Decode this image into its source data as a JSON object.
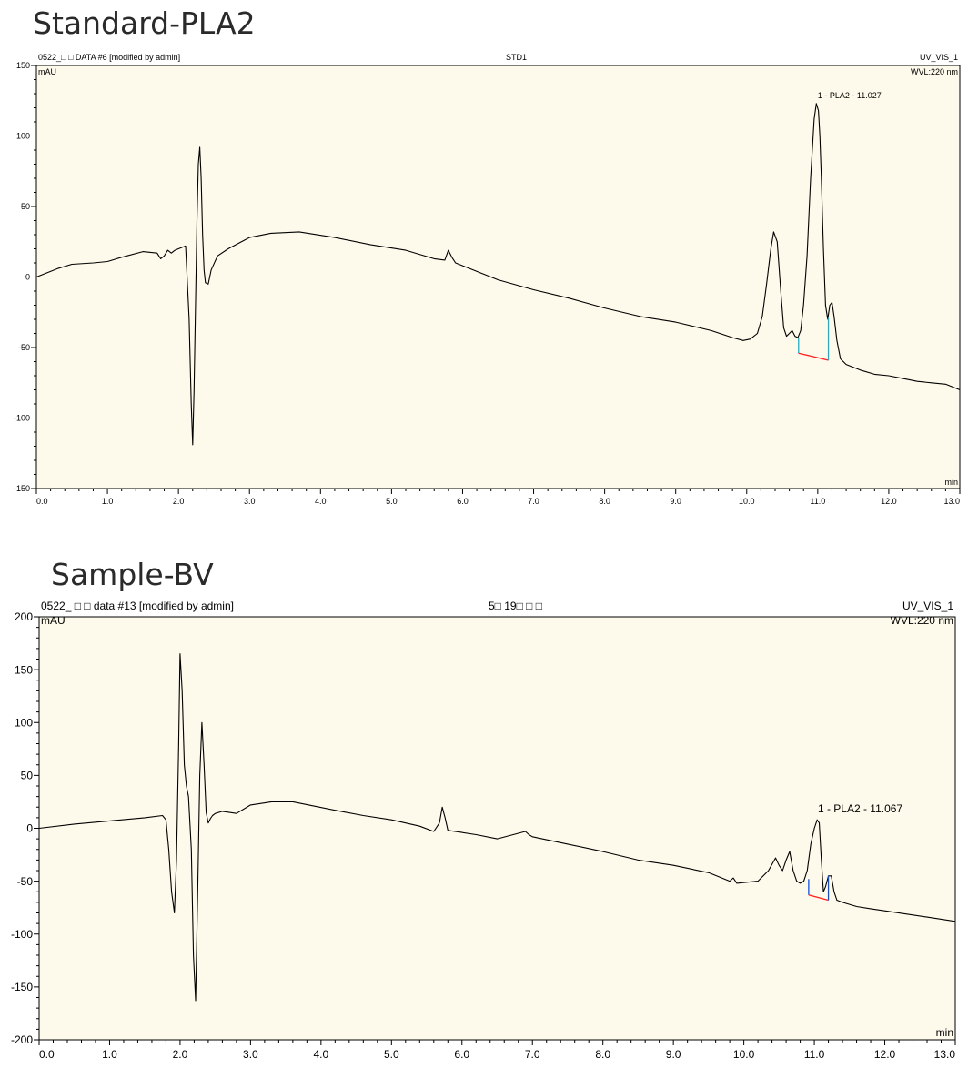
{
  "chart_data": [
    {
      "type": "line",
      "title": "Standard-PLA2",
      "header_left": "0522_□ □ DATA #6 [modified by admin]",
      "header_center": "STD1",
      "header_right_1": "UV_VIS_1",
      "header_right_2": "WVL:220 nm",
      "ylabel": "mAU",
      "xlabel": "min",
      "xlim": [
        0,
        13
      ],
      "ylim": [
        -150,
        150
      ],
      "x_ticks": [
        "0.0",
        "1.0",
        "2.0",
        "3.0",
        "4.0",
        "5.0",
        "6.0",
        "7.0",
        "8.0",
        "9.0",
        "10.0",
        "11.0",
        "12.0",
        "13.0"
      ],
      "y_ticks": [
        "150",
        "100",
        "50",
        "0",
        "-50",
        "-100",
        "-150"
      ],
      "peak_label": "1 - PLA2 - 11.027",
      "peak_label_at": [
        11.0,
        123
      ],
      "baseline_segment": [
        [
          10.73,
          -54
        ],
        [
          11.15,
          -59
        ]
      ],
      "baseline_ticks": [
        [
          10.73,
          -43,
          -54
        ],
        [
          11.15,
          -29,
          -59
        ]
      ],
      "colors": {
        "background": "#fdf9eb",
        "trace": "#000000",
        "baseline": "#ff2020",
        "marker": "#00b8e0"
      },
      "series": [
        {
          "x": [
            0,
            0.3,
            0.5,
            0.8,
            1.0,
            1.2,
            1.5,
            1.7,
            1.75,
            1.8,
            1.85,
            1.9,
            1.95,
            2.0,
            2.1,
            2.15,
            2.18,
            2.2,
            2.22,
            2.24,
            2.26,
            2.28,
            2.3,
            2.32,
            2.34,
            2.36,
            2.38,
            2.42,
            2.46,
            2.55,
            2.7,
            3.0,
            3.3,
            3.7,
            4.2,
            4.7,
            5.2,
            5.6,
            5.75,
            5.8,
            5.85,
            5.9,
            6.0,
            6.5,
            7.0,
            7.5,
            8.0,
            8.5,
            9.0,
            9.5,
            9.8,
            9.95,
            10.05,
            10.15,
            10.22,
            10.28,
            10.34,
            10.38,
            10.43,
            10.48,
            10.52,
            10.56,
            10.6,
            10.64,
            10.68,
            10.72,
            10.76,
            10.8,
            10.85,
            10.9,
            10.95,
            10.98,
            11.01,
            11.03,
            11.05,
            11.08,
            11.11,
            11.14,
            11.17,
            11.2,
            11.23,
            11.27,
            11.32,
            11.4,
            11.6,
            11.8,
            12.0,
            12.2,
            12.4,
            12.6,
            12.8,
            13.0
          ],
          "y": [
            0,
            6,
            9,
            10,
            11,
            14,
            18,
            17,
            13,
            15,
            19,
            17,
            19,
            20,
            22,
            -30,
            -90,
            -119,
            -80,
            -20,
            40,
            80,
            92,
            70,
            30,
            5,
            -4,
            -5,
            5,
            15,
            20,
            28,
            31,
            32,
            28,
            23,
            19,
            13,
            12,
            19,
            14,
            10,
            8,
            -2,
            -9,
            -15,
            -22,
            -28,
            -32,
            -38,
            -43,
            -45,
            -44,
            -40,
            -28,
            -5,
            20,
            32,
            25,
            -10,
            -36,
            -42,
            -40,
            -38,
            -42,
            -43,
            -38,
            -20,
            15,
            70,
            112,
            123,
            118,
            100,
            70,
            20,
            -20,
            -30,
            -20,
            -18,
            -28,
            -45,
            -58,
            -62,
            -66,
            -69,
            -70,
            -72,
            -74,
            -75,
            -76,
            -80
          ]
        }
      ]
    },
    {
      "type": "line",
      "title": "Sample-BV",
      "header_left": "0522_ □ □ data #13 [modified by admin]",
      "header_center": "5□ 19□  □ □",
      "header_right_1": "UV_VIS_1",
      "header_right_2": "WVL:220 nm",
      "ylabel": "mAU",
      "xlabel": "min",
      "xlim": [
        0,
        13
      ],
      "ylim": [
        -200,
        200
      ],
      "x_ticks": [
        "0.0",
        "1.0",
        "2.0",
        "3.0",
        "4.0",
        "5.0",
        "6.0",
        "7.0",
        "8.0",
        "9.0",
        "10.0",
        "11.0",
        "12.0",
        "13.0"
      ],
      "y_ticks": [
        "200",
        "150",
        "100",
        "50",
        "0",
        "-50",
        "-100",
        "-150",
        "-200"
      ],
      "peak_label": "1 - PLA2 - 11.067",
      "peak_label_at": [
        11.05,
        10
      ],
      "baseline_segment": [
        [
          10.92,
          -63
        ],
        [
          11.2,
          -68
        ]
      ],
      "baseline_ticks": [
        [
          10.92,
          -48,
          -63
        ],
        [
          11.2,
          -45,
          -68
        ]
      ],
      "colors": {
        "background": "#fdf9eb",
        "trace": "#000000",
        "baseline": "#ff2020",
        "marker": "#0050ff"
      },
      "series": [
        {
          "x": [
            0,
            0.5,
            1.0,
            1.5,
            1.75,
            1.8,
            1.84,
            1.88,
            1.92,
            1.95,
            1.98,
            2.0,
            2.03,
            2.06,
            2.09,
            2.12,
            2.16,
            2.19,
            2.22,
            2.25,
            2.28,
            2.31,
            2.34,
            2.37,
            2.4,
            2.43,
            2.46,
            2.5,
            2.6,
            2.8,
            3.0,
            3.3,
            3.6,
            3.9,
            4.2,
            4.6,
            5.0,
            5.4,
            5.6,
            5.68,
            5.72,
            5.76,
            5.8,
            6.0,
            6.2,
            6.5,
            6.9,
            6.95,
            7.0,
            7.5,
            8.0,
            8.5,
            9.0,
            9.5,
            9.8,
            9.85,
            9.9,
            10.2,
            10.35,
            10.45,
            10.5,
            10.55,
            10.6,
            10.65,
            10.7,
            10.75,
            10.8,
            10.85,
            10.9,
            10.95,
            11.0,
            11.04,
            11.07,
            11.1,
            11.13,
            11.16,
            11.2,
            11.24,
            11.28,
            11.32,
            11.4,
            11.6,
            11.8,
            12.0,
            12.3,
            12.6,
            13.0
          ],
          "y": [
            0,
            4,
            7,
            10,
            12,
            8,
            -20,
            -60,
            -80,
            -30,
            80,
            165,
            130,
            60,
            40,
            30,
            -20,
            -120,
            -163,
            -60,
            50,
            100,
            60,
            15,
            5,
            9,
            12,
            14,
            16,
            14,
            22,
            25,
            25,
            21,
            17,
            12,
            8,
            2,
            -3,
            5,
            20,
            10,
            -2,
            -4,
            -6,
            -10,
            -3,
            -6,
            -8,
            -15,
            -22,
            -30,
            -35,
            -42,
            -50,
            -47,
            -52,
            -50,
            -40,
            -28,
            -35,
            -40,
            -30,
            -22,
            -40,
            -50,
            -52,
            -50,
            -40,
            -15,
            0,
            8,
            5,
            -30,
            -60,
            -55,
            -45,
            -45,
            -60,
            -68,
            -70,
            -74,
            -76,
            -78,
            -81,
            -84,
            -88
          ]
        }
      ]
    }
  ]
}
